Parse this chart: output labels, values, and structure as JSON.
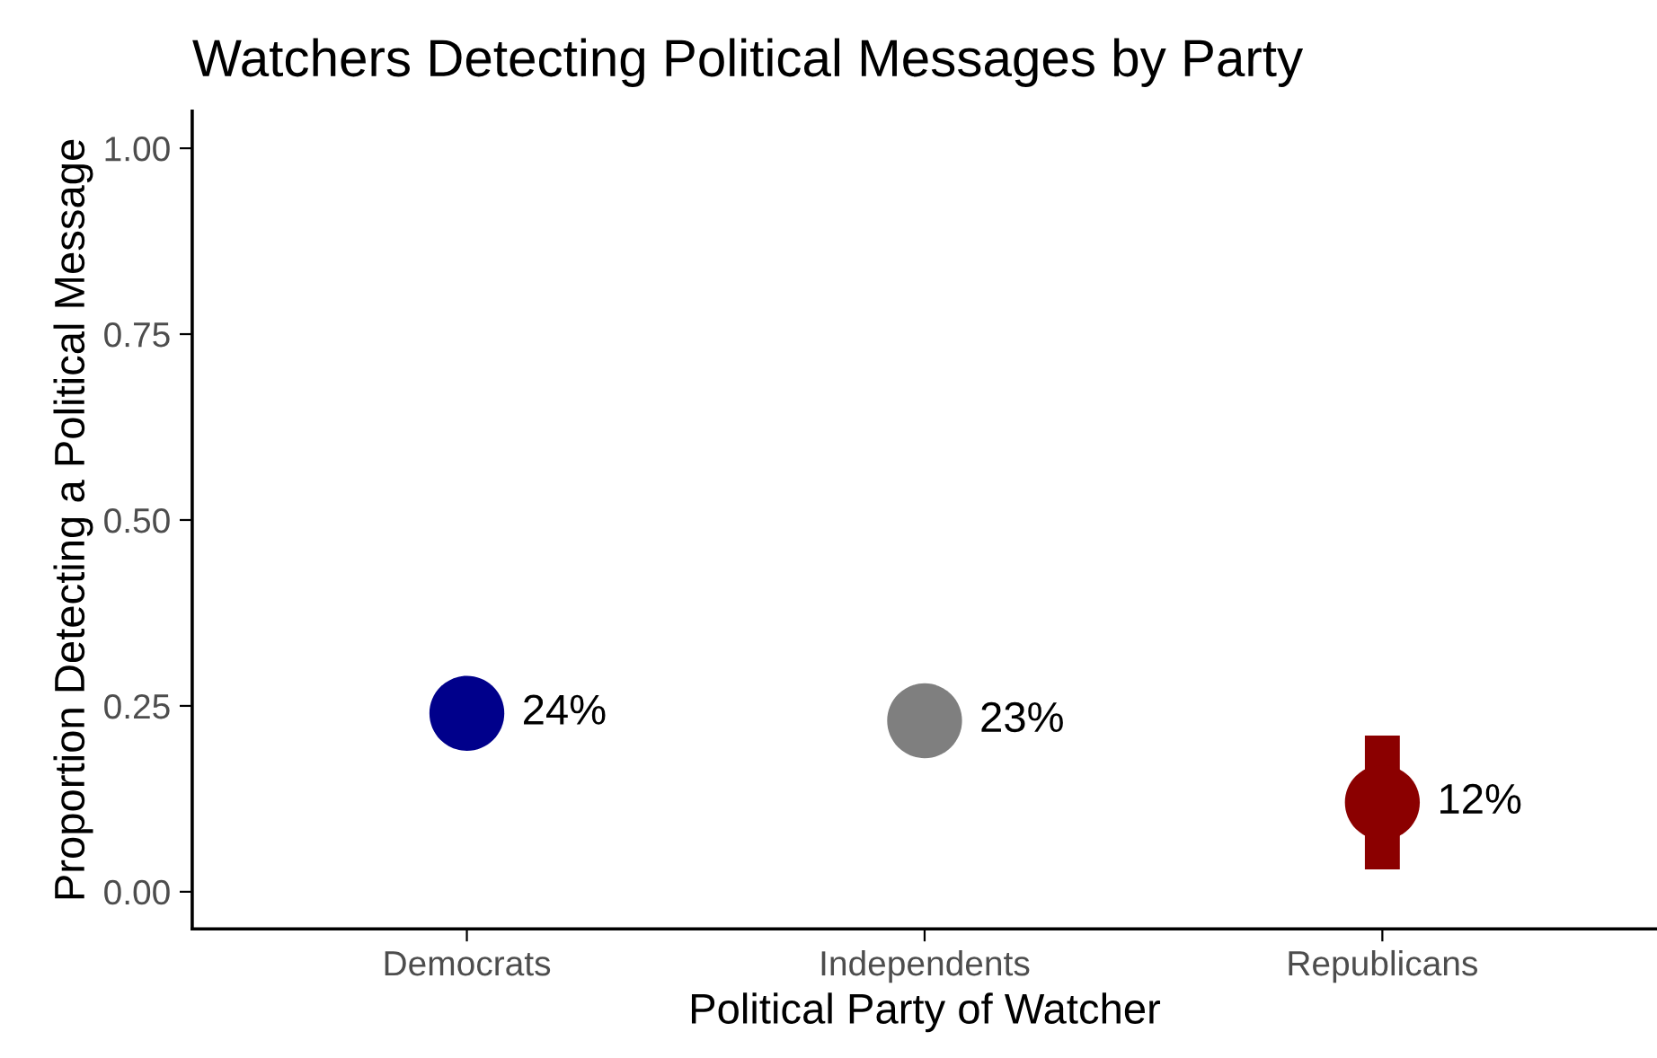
{
  "chart_data": {
    "type": "scatter",
    "title": "Watchers Detecting Political Messages by Party",
    "xlabel": "Political Party of Watcher",
    "ylabel": "Proportion Detecting a Political Message",
    "categories": [
      "Democrats",
      "Independents",
      "Republicans"
    ],
    "values": [
      0.24,
      0.23,
      0.12
    ],
    "colors": [
      "#00008b",
      "#7f7f7f",
      "#8b0000"
    ],
    "errors": [
      null,
      null,
      [
        0.03,
        0.21
      ]
    ],
    "value_labels": [
      "24%",
      "23%",
      "12%"
    ],
    "ylim": [
      -0.05,
      1.05
    ],
    "yticks": [
      {
        "value": 0,
        "label": "0.00"
      },
      {
        "value": 0.25,
        "label": "0.25"
      },
      {
        "value": 0.5,
        "label": "0.50"
      },
      {
        "value": 0.75,
        "label": "0.75"
      },
      {
        "value": 1,
        "label": "1.00"
      }
    ],
    "grid": false,
    "legend": false,
    "marker": "circle"
  }
}
